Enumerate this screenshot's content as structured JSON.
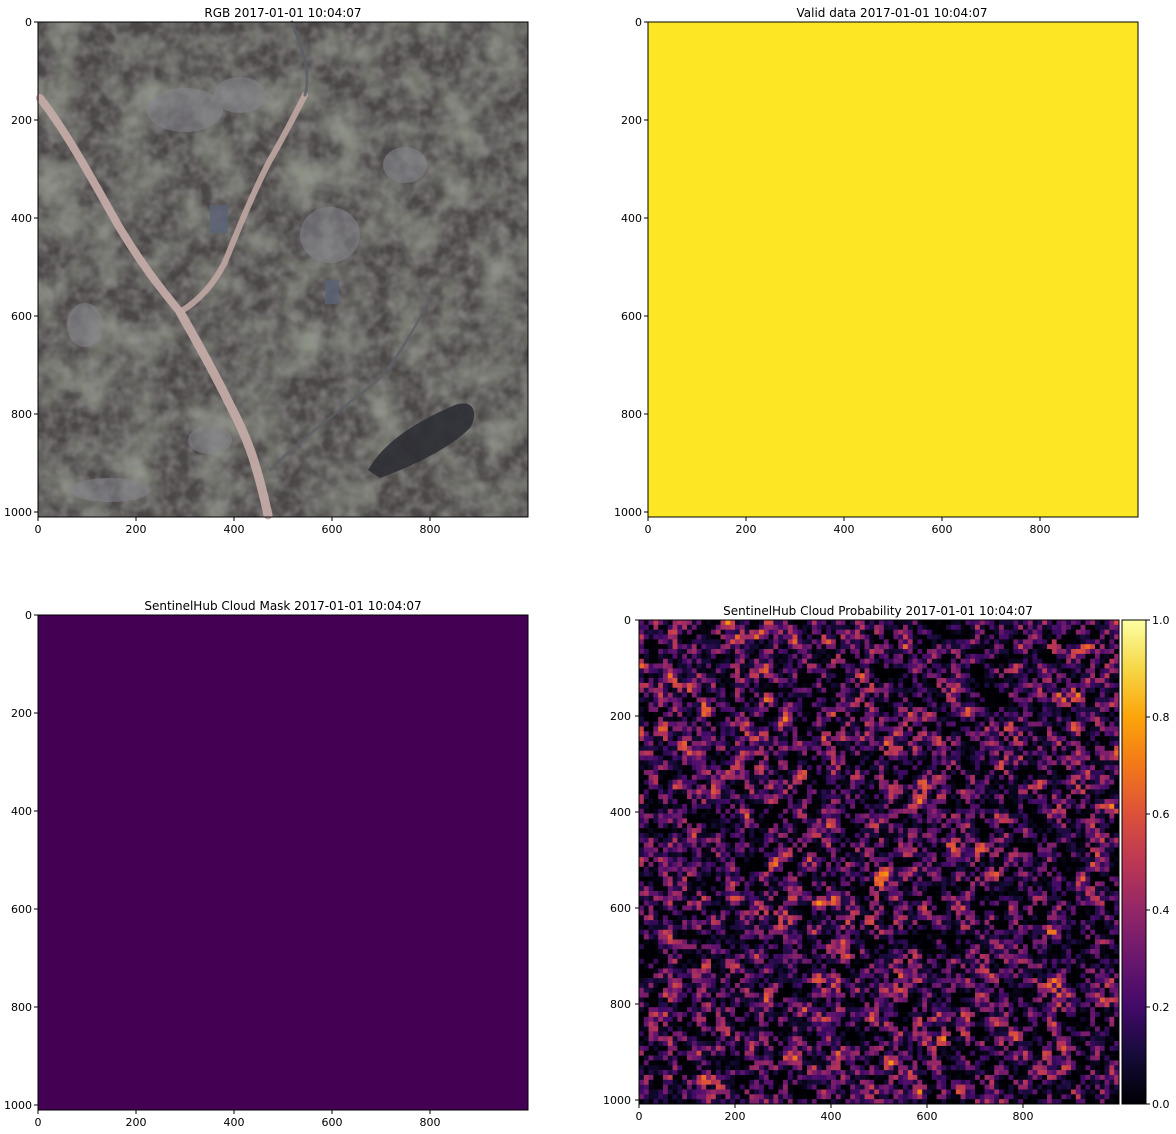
{
  "figure": {
    "background": "#ffffff"
  },
  "chart_data": [
    {
      "id": "rgb",
      "type": "image",
      "title": "RGB 2017-01-01 10:04:07",
      "content": "satellite true-color image with a braided riverbed",
      "xlim": [
        0,
        1000
      ],
      "ylim": [
        1010,
        0
      ],
      "x_ticks": [
        0,
        200,
        400,
        600,
        800
      ],
      "y_ticks": [
        0,
        200,
        400,
        600,
        800,
        1000
      ],
      "colors": {
        "base": "#4e4a49",
        "field_green": "#47503f",
        "field_dark": "#3b3a3a",
        "riverbed": "#c6aeaa",
        "urban": "#8c8c94",
        "forest": "#2c2d31"
      }
    },
    {
      "id": "valid",
      "type": "heatmap",
      "title": "Valid data 2017-01-01 10:04:07",
      "value": 1,
      "fill_color": "#fde725",
      "xlim": [
        0,
        1000
      ],
      "ylim": [
        1010,
        0
      ],
      "x_ticks": [
        0,
        200,
        400,
        600,
        800
      ],
      "y_ticks": [
        0,
        200,
        400,
        600,
        800,
        1000
      ]
    },
    {
      "id": "cloud-mask",
      "type": "heatmap",
      "title": "SentinelHub Cloud Mask 2017-01-01 10:04:07",
      "value": 0,
      "fill_color": "#440154",
      "xlim": [
        0,
        1000
      ],
      "ylim": [
        1010,
        0
      ],
      "x_ticks": [
        0,
        200,
        400,
        600,
        800
      ],
      "y_ticks": [
        0,
        200,
        400,
        600,
        800,
        1000
      ]
    },
    {
      "id": "cloud-prob",
      "type": "heatmap",
      "title": "SentinelHub Cloud Probability 2017-01-01 10:04:07",
      "colormap": "inferno",
      "grid_cells": [
        100,
        100
      ],
      "value_range": [
        0,
        1
      ],
      "typical_value": 0.15,
      "max_value": 0.85,
      "xlim": [
        0,
        1000
      ],
      "ylim": [
        1010,
        0
      ],
      "x_ticks": [
        0,
        200,
        400,
        600,
        800
      ],
      "y_ticks": [
        0,
        200,
        400,
        600,
        800,
        1000
      ],
      "colorbar": {
        "ticks": [
          0.0,
          0.2,
          0.4,
          0.6,
          0.8,
          1.0
        ],
        "tick_labels": [
          "0.0",
          "0.2",
          "0.4",
          "0.6",
          "0.8",
          "1.0"
        ]
      }
    }
  ]
}
